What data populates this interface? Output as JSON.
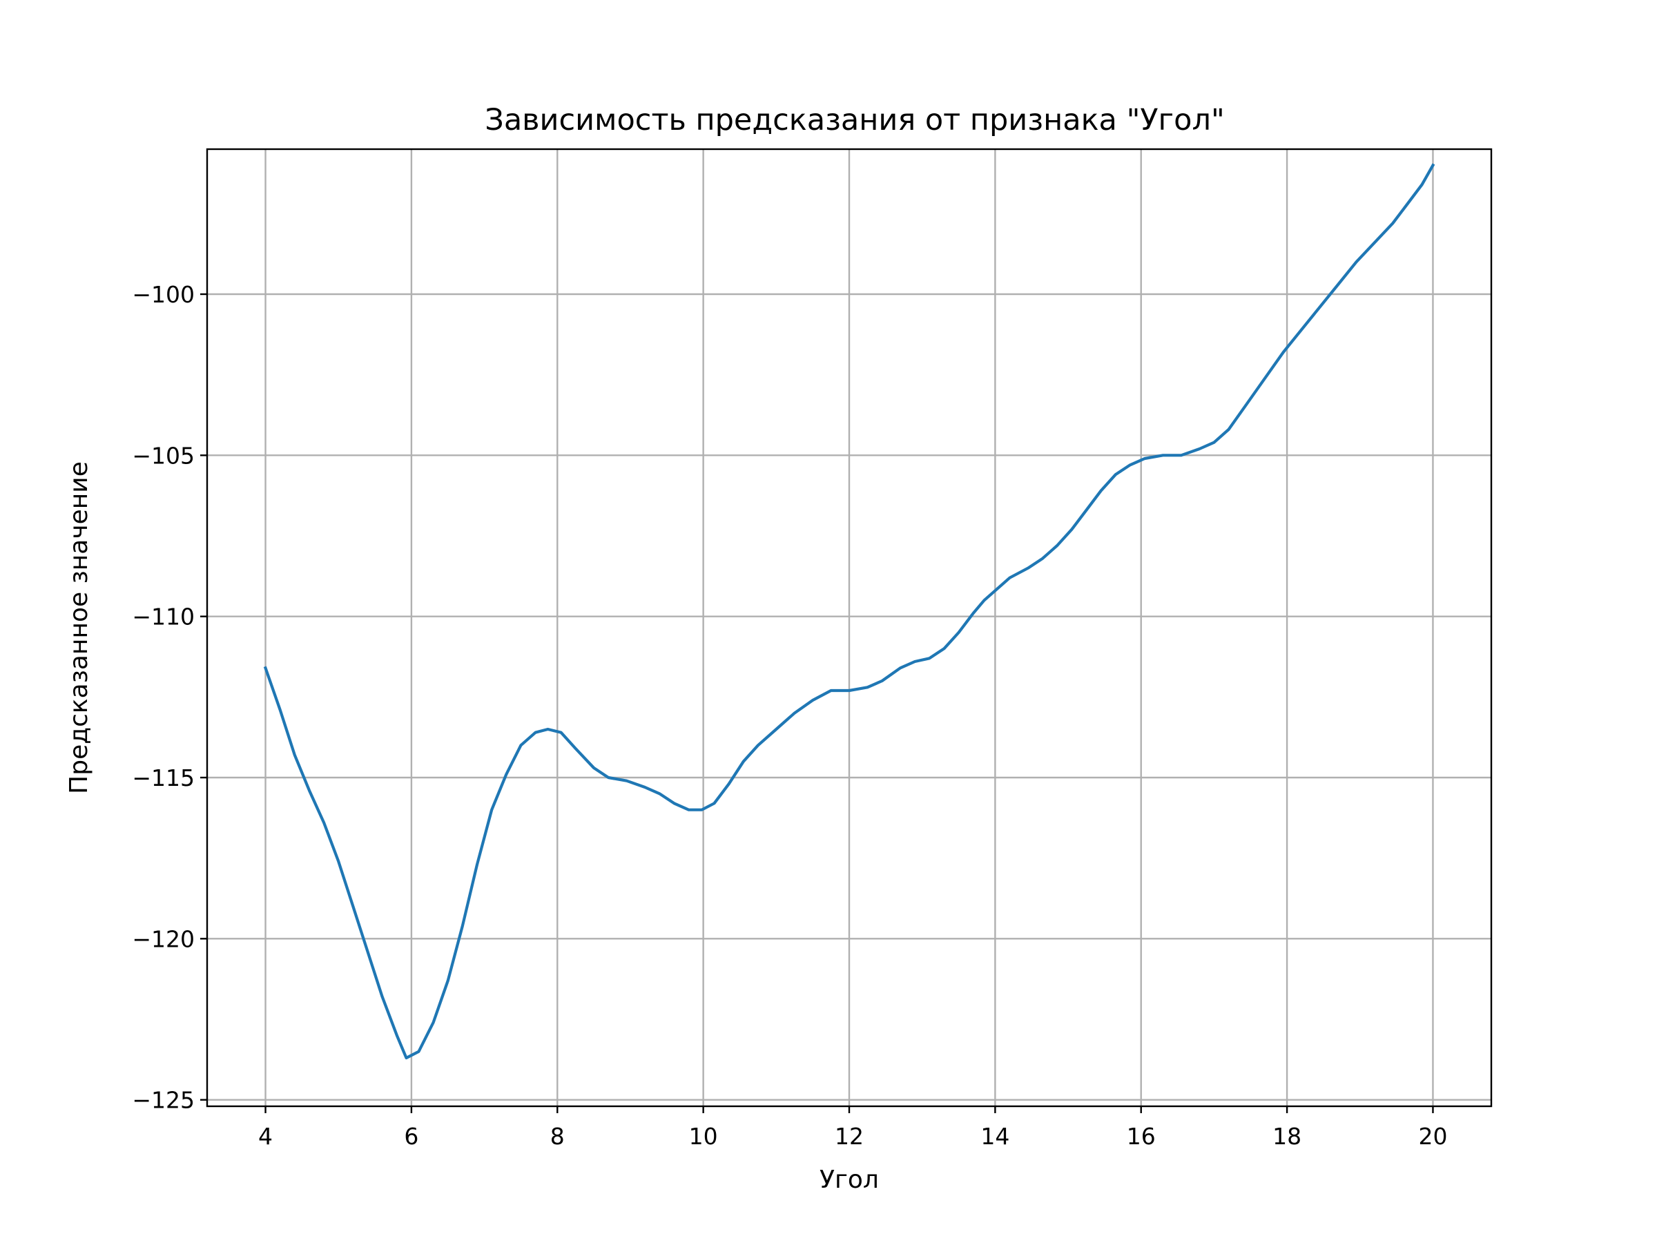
{
  "chart_data": {
    "type": "line",
    "title": "Зависимость предсказания от признака \"Угол\"",
    "xlabel": "Угол",
    "ylabel": "Предсказанное значение",
    "xlim": [
      3.2,
      20.8
    ],
    "ylim": [
      -125.2,
      -95.5
    ],
    "xticks": [
      4,
      6,
      8,
      10,
      12,
      14,
      16,
      18,
      20
    ],
    "xtick_labels": [
      "4",
      "6",
      "8",
      "10",
      "12",
      "14",
      "16",
      "18",
      "20"
    ],
    "yticks": [
      -100,
      -105,
      -110,
      -115,
      -120,
      -125
    ],
    "ytick_labels": [
      "−100",
      "−105",
      "−110",
      "−115",
      "−120",
      "−125"
    ],
    "grid": true,
    "legend": false,
    "series": [
      {
        "color": "#1f77b4",
        "x": [
          4.0,
          4.2,
          4.4,
          4.6,
          4.8,
          5.0,
          5.2,
          5.4,
          5.6,
          5.8,
          5.93,
          6.1,
          6.3,
          6.5,
          6.7,
          6.9,
          7.1,
          7.3,
          7.5,
          7.7,
          7.87,
          8.05,
          8.25,
          8.5,
          8.7,
          8.95,
          9.2,
          9.4,
          9.6,
          9.8,
          9.98,
          10.15,
          10.35,
          10.55,
          10.75,
          11.0,
          11.25,
          11.5,
          11.75,
          12.0,
          12.25,
          12.45,
          12.7,
          12.9,
          13.1,
          13.3,
          13.5,
          13.7,
          13.85,
          14.0,
          14.2,
          14.45,
          14.65,
          14.85,
          15.05,
          15.25,
          15.45,
          15.65,
          15.85,
          16.05,
          16.3,
          16.55,
          16.8,
          17.0,
          17.2,
          17.45,
          17.7,
          17.95,
          18.2,
          18.45,
          18.7,
          18.95,
          19.2,
          19.45,
          19.65,
          19.85,
          20.0
        ],
        "y": [
          -111.6,
          -112.9,
          -114.3,
          -115.4,
          -116.4,
          -117.6,
          -119.0,
          -120.4,
          -121.8,
          -123.0,
          -123.7,
          -123.5,
          -122.6,
          -121.3,
          -119.6,
          -117.7,
          -116.0,
          -114.9,
          -114.0,
          -113.6,
          -113.5,
          -113.6,
          -114.1,
          -114.7,
          -115.0,
          -115.1,
          -115.3,
          -115.5,
          -115.8,
          -116.0,
          -116.0,
          -115.8,
          -115.2,
          -114.5,
          -114.0,
          -113.5,
          -113.0,
          -112.6,
          -112.3,
          -112.3,
          -112.2,
          -112.0,
          -111.6,
          -111.4,
          -111.3,
          -111.0,
          -110.5,
          -109.9,
          -109.5,
          -109.2,
          -108.8,
          -108.5,
          -108.2,
          -107.8,
          -107.3,
          -106.7,
          -106.1,
          -105.6,
          -105.3,
          -105.1,
          -105.0,
          -105.0,
          -104.8,
          -104.6,
          -104.2,
          -103.4,
          -102.6,
          -101.8,
          -101.1,
          -100.4,
          -99.7,
          -99.0,
          -98.4,
          -97.8,
          -97.2,
          -96.6,
          -96.0
        ]
      }
    ]
  }
}
